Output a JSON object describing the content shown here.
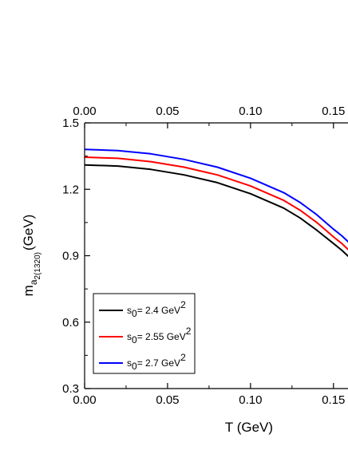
{
  "chart_data": {
    "type": "line",
    "xlabel": "T (GeV)",
    "ylabel": {
      "main": "m",
      "sub": "a",
      "subsub": "2(1320)",
      "unit": "(GeV)"
    },
    "xlim": [
      0.0,
      0.16
    ],
    "ylim": [
      0.3,
      1.5
    ],
    "xticks": [
      0.0,
      0.05,
      0.1,
      0.15
    ],
    "xtick_labels": [
      "0.00",
      "0.05",
      "0.10",
      "0.15"
    ],
    "yticks": [
      0.3,
      0.6,
      0.9,
      1.2,
      1.5
    ],
    "ytick_labels": [
      "0.3",
      "0.6",
      "0.9",
      "1.2",
      "1.5"
    ],
    "top_axis_labels": true,
    "grid": false,
    "legend_position": "bottom-left",
    "series": [
      {
        "name": "s0= 2.4 GeV2",
        "legend": {
          "pre": "s",
          "sub": "0",
          "mid": "= 2.4 GeV",
          "sup": "2"
        },
        "color": "#000000",
        "x": [
          0.0,
          0.02,
          0.04,
          0.06,
          0.08,
          0.1,
          0.12,
          0.13,
          0.14,
          0.15,
          0.155,
          0.16
        ],
        "y": [
          1.31,
          1.305,
          1.29,
          1.265,
          1.23,
          1.18,
          1.115,
          1.07,
          1.015,
          0.955,
          0.925,
          0.89
        ]
      },
      {
        "name": "s0= 2.55 GeV2",
        "legend": {
          "pre": "s",
          "sub": "0",
          "mid": "= 2.55 GeV",
          "sup": "2"
        },
        "color": "#ff0000",
        "x": [
          0.0,
          0.02,
          0.04,
          0.06,
          0.08,
          0.1,
          0.12,
          0.13,
          0.14,
          0.15,
          0.155,
          0.16
        ],
        "y": [
          1.345,
          1.34,
          1.325,
          1.3,
          1.265,
          1.215,
          1.15,
          1.105,
          1.05,
          0.985,
          0.955,
          0.92
        ]
      },
      {
        "name": "s0= 2.7 GeV2",
        "legend": {
          "pre": "s",
          "sub": "0",
          "mid": "= 2.7 GeV",
          "sup": "2"
        },
        "color": "#0000ff",
        "x": [
          0.0,
          0.02,
          0.04,
          0.06,
          0.08,
          0.1,
          0.12,
          0.13,
          0.14,
          0.15,
          0.155,
          0.16
        ],
        "y": [
          1.38,
          1.375,
          1.36,
          1.335,
          1.3,
          1.25,
          1.185,
          1.14,
          1.085,
          1.02,
          0.99,
          0.955
        ]
      }
    ]
  }
}
